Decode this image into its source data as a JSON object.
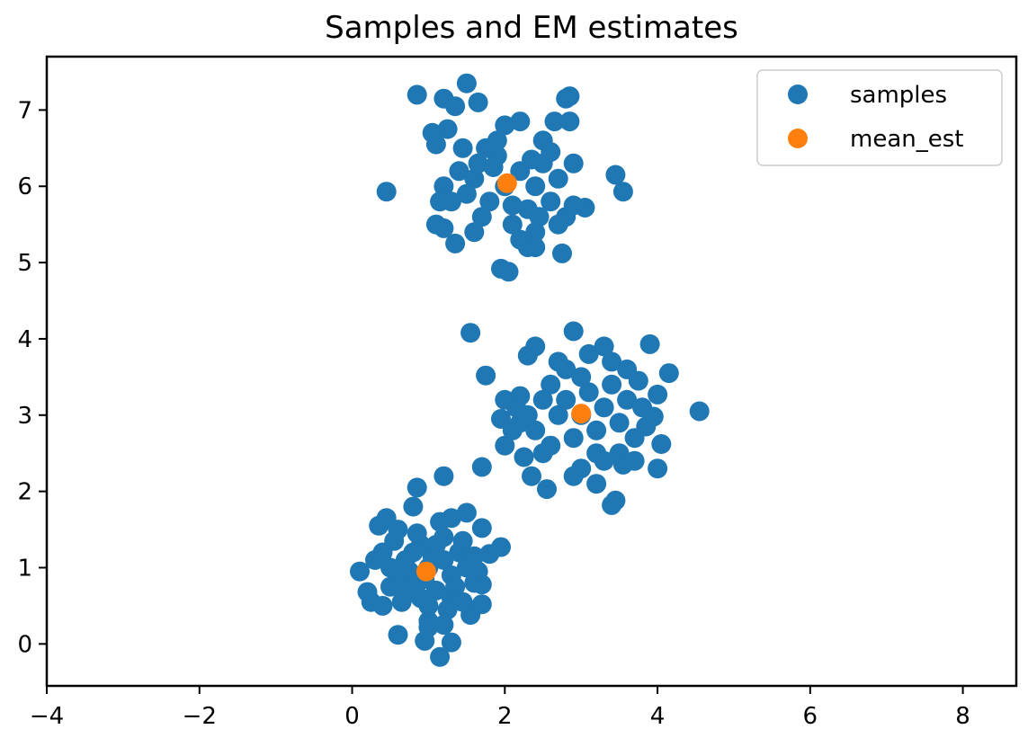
{
  "chart_data": {
    "type": "scatter",
    "title": "Samples and EM estimates",
    "xlabel": "",
    "ylabel": "",
    "xlim": [
      -4,
      8.7
    ],
    "ylim": [
      -0.55,
      7.7
    ],
    "xticks": [
      -4,
      -2,
      0,
      2,
      4,
      6,
      8
    ],
    "yticks": [
      0,
      1,
      2,
      3,
      4,
      5,
      6,
      7
    ],
    "xtick_labels": [
      "−4",
      "−2",
      "0",
      "2",
      "4",
      "6",
      "8"
    ],
    "ytick_labels": [
      "0",
      "1",
      "2",
      "3",
      "4",
      "5",
      "6",
      "7"
    ],
    "grid": false,
    "legend": {
      "position": "top-right"
    },
    "series": [
      {
        "name": "samples",
        "color": "#1f77b4",
        "points": [
          [
            1.0,
            1.0
          ],
          [
            0.8,
            0.8
          ],
          [
            1.2,
            1.1
          ],
          [
            0.9,
            1.3
          ],
          [
            1.1,
            0.7
          ],
          [
            1.3,
            0.9
          ],
          [
            0.7,
            1.1
          ],
          [
            1.4,
            1.2
          ],
          [
            0.6,
            0.9
          ],
          [
            1.0,
            0.5
          ],
          [
            1.2,
            1.4
          ],
          [
            0.9,
            0.6
          ],
          [
            1.5,
            1.0
          ],
          [
            0.5,
            1.0
          ],
          [
            1.1,
            1.3
          ],
          [
            0.8,
            1.2
          ],
          [
            1.3,
            0.6
          ],
          [
            0.7,
            0.7
          ],
          [
            1.6,
            0.8
          ],
          [
            0.4,
            1.2
          ],
          [
            1.0,
            0.3
          ],
          [
            0.85,
            1.45
          ],
          [
            1.25,
            0.45
          ],
          [
            0.65,
            0.55
          ],
          [
            1.45,
            1.35
          ],
          [
            0.55,
            1.35
          ],
          [
            1.05,
            1.15
          ],
          [
            0.95,
            0.85
          ],
          [
            1.35,
            0.75
          ],
          [
            0.75,
            0.95
          ],
          [
            0.1,
            0.95
          ],
          [
            0.2,
            0.68
          ],
          [
            0.25,
            0.55
          ],
          [
            0.35,
            1.55
          ],
          [
            0.45,
            1.65
          ],
          [
            0.85,
            2.05
          ],
          [
            0.8,
            1.8
          ],
          [
            1.2,
            2.2
          ],
          [
            1.5,
            1.72
          ],
          [
            1.7,
            1.52
          ],
          [
            1.95,
            1.27
          ],
          [
            1.8,
            1.18
          ],
          [
            1.7,
            0.78
          ],
          [
            1.7,
            0.52
          ],
          [
            1.55,
            0.38
          ],
          [
            1.3,
            0.02
          ],
          [
            1.15,
            -0.17
          ],
          [
            0.95,
            0.04
          ],
          [
            0.6,
            0.12
          ],
          [
            1.0,
            0.22
          ],
          [
            1.2,
            0.25
          ],
          [
            1.45,
            0.55
          ],
          [
            1.3,
            1.65
          ],
          [
            1.15,
            1.6
          ],
          [
            0.6,
            1.5
          ],
          [
            0.3,
            1.1
          ],
          [
            0.4,
            0.5
          ],
          [
            1.6,
            1.15
          ],
          [
            1.65,
            0.95
          ],
          [
            0.5,
            0.75
          ],
          [
            3.0,
            3.0
          ],
          [
            2.8,
            3.2
          ],
          [
            3.2,
            2.8
          ],
          [
            3.1,
            3.3
          ],
          [
            2.9,
            2.7
          ],
          [
            3.3,
            3.1
          ],
          [
            2.7,
            3.0
          ],
          [
            3.4,
            3.4
          ],
          [
            2.6,
            2.6
          ],
          [
            3.0,
            3.5
          ],
          [
            3.5,
            2.9
          ],
          [
            2.5,
            3.2
          ],
          [
            3.2,
            2.5
          ],
          [
            2.8,
            3.6
          ],
          [
            3.6,
            3.2
          ],
          [
            2.4,
            2.8
          ],
          [
            3.3,
            2.4
          ],
          [
            2.7,
            3.7
          ],
          [
            3.7,
            2.7
          ],
          [
            2.3,
            3.0
          ],
          [
            3.0,
            2.3
          ],
          [
            3.4,
            3.7
          ],
          [
            2.6,
            3.4
          ],
          [
            3.5,
            2.5
          ],
          [
            2.5,
            2.5
          ],
          [
            3.1,
            3.8
          ],
          [
            3.8,
            3.1
          ],
          [
            2.2,
            2.9
          ],
          [
            2.9,
            2.2
          ],
          [
            3.6,
            3.6
          ],
          [
            2.4,
            3.9
          ],
          [
            2.9,
            4.1
          ],
          [
            3.3,
            3.9
          ],
          [
            3.9,
            3.93
          ],
          [
            4.15,
            3.55
          ],
          [
            4.0,
            3.27
          ],
          [
            3.95,
            2.98
          ],
          [
            4.05,
            2.62
          ],
          [
            4.0,
            2.3
          ],
          [
            3.55,
            2.35
          ],
          [
            3.45,
            1.88
          ],
          [
            3.4,
            1.82
          ],
          [
            3.2,
            2.1
          ],
          [
            2.55,
            2.03
          ],
          [
            2.35,
            2.2
          ],
          [
            2.25,
            2.45
          ],
          [
            2.0,
            2.6
          ],
          [
            1.95,
            2.95
          ],
          [
            2.0,
            3.2
          ],
          [
            2.3,
            3.78
          ],
          [
            1.75,
            3.52
          ],
          [
            1.55,
            4.08
          ],
          [
            1.7,
            2.32
          ],
          [
            4.55,
            3.05
          ],
          [
            3.7,
            2.4
          ],
          [
            2.1,
            2.8
          ],
          [
            2.2,
            3.25
          ],
          [
            3.75,
            3.45
          ],
          [
            2.15,
            3.1
          ],
          [
            3.85,
            2.85
          ],
          [
            2.0,
            6.0
          ],
          [
            1.8,
            5.8
          ],
          [
            2.2,
            6.2
          ],
          [
            1.9,
            6.4
          ],
          [
            2.3,
            5.7
          ],
          [
            1.6,
            6.1
          ],
          [
            2.4,
            6.0
          ],
          [
            1.7,
            5.6
          ],
          [
            2.5,
            6.3
          ],
          [
            1.5,
            5.9
          ],
          [
            2.6,
            5.8
          ],
          [
            2.1,
            5.5
          ],
          [
            1.9,
            6.6
          ],
          [
            2.7,
            6.1
          ],
          [
            1.4,
            6.2
          ],
          [
            2.2,
            5.3
          ],
          [
            2.8,
            5.6
          ],
          [
            1.3,
            5.8
          ],
          [
            2.0,
            6.8
          ],
          [
            2.9,
            6.3
          ],
          [
            1.2,
            6.0
          ],
          [
            2.4,
            5.4
          ],
          [
            1.6,
            5.4
          ],
          [
            2.5,
            6.6
          ],
          [
            1.1,
            5.5
          ],
          [
            2.7,
            5.5
          ],
          [
            1.35,
            5.25
          ],
          [
            2.3,
            5.2
          ],
          [
            1.25,
            6.75
          ],
          [
            2.85,
            6.85
          ],
          [
            0.85,
            7.2
          ],
          [
            1.2,
            7.15
          ],
          [
            1.35,
            7.05
          ],
          [
            1.5,
            7.35
          ],
          [
            1.65,
            7.1
          ],
          [
            2.2,
            6.85
          ],
          [
            2.8,
            7.15
          ],
          [
            2.85,
            7.18
          ],
          [
            2.65,
            6.85
          ],
          [
            0.45,
            5.93
          ],
          [
            1.2,
            5.45
          ],
          [
            1.15,
            5.8
          ],
          [
            1.95,
            4.92
          ],
          [
            2.05,
            4.88
          ],
          [
            2.4,
            5.2
          ],
          [
            2.75,
            5.12
          ],
          [
            3.45,
            6.15
          ],
          [
            3.55,
            5.93
          ],
          [
            3.05,
            5.72
          ],
          [
            2.9,
            5.75
          ],
          [
            1.05,
            6.7
          ],
          [
            1.1,
            6.55
          ],
          [
            1.75,
            6.5
          ],
          [
            2.6,
            6.45
          ],
          [
            1.85,
            6.25
          ],
          [
            2.35,
            6.35
          ],
          [
            1.45,
            6.5
          ],
          [
            2.1,
            5.75
          ],
          [
            1.65,
            6.3
          ],
          [
            2.45,
            5.6
          ]
        ]
      },
      {
        "name": "mean_est",
        "color": "#ff7f0e",
        "points": [
          [
            0.97,
            0.95
          ],
          [
            3.0,
            3.02
          ],
          [
            2.03,
            6.04
          ]
        ]
      }
    ]
  }
}
